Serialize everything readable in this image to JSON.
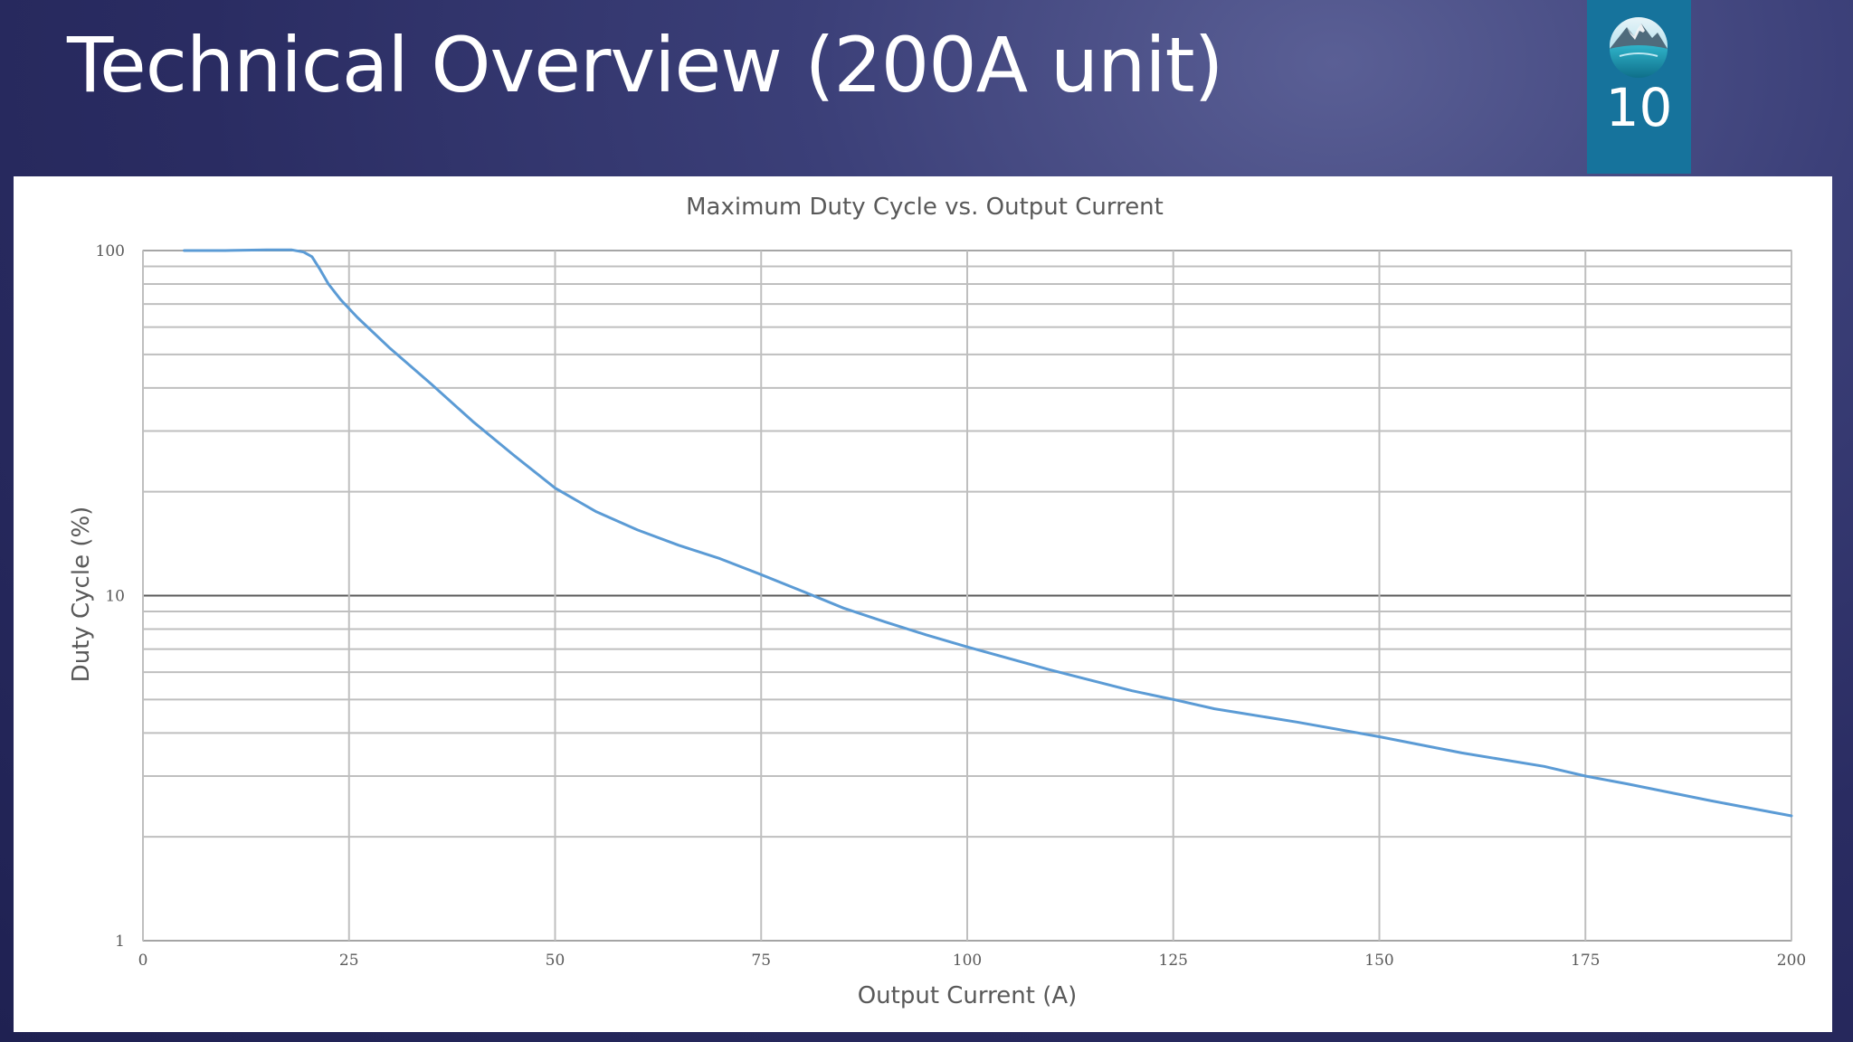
{
  "slide": {
    "title": "Technical Overview (200A unit)",
    "page_number": "10"
  },
  "colors": {
    "background": "#2a2c62",
    "badge": "#16739c",
    "line": "#5b9bd5",
    "major_grid": "#595959",
    "minor_grid": "#bfbfbf"
  },
  "chart_data": {
    "type": "line",
    "title": "Maximum Duty Cycle vs. Output Current",
    "xlabel": "Output Current (A)",
    "ylabel": "Duty Cycle (%)",
    "xlim": [
      0,
      200
    ],
    "ylim": [
      1,
      100
    ],
    "yscale": "log",
    "grid": true,
    "legend": "none",
    "x_ticks": [
      "0",
      "25",
      "50",
      "75",
      "100",
      "125",
      "150",
      "175",
      "200"
    ],
    "y_ticks": [
      "1",
      "10",
      "100"
    ],
    "series": [
      {
        "x": [
          5,
          10,
          15,
          18,
          19.5,
          20.5,
          21.5,
          22.5,
          24,
          26,
          30,
          35,
          40,
          45,
          50,
          55,
          60,
          65,
          70,
          75,
          80,
          85,
          90,
          95,
          100,
          110,
          120,
          125,
          130,
          140,
          150,
          160,
          170,
          175,
          180,
          190,
          200
        ],
        "y": [
          100,
          100,
          100.5,
          100.5,
          99,
          96,
          88,
          80,
          72,
          64,
          52,
          41,
          32,
          25.5,
          20.5,
          17.5,
          15.5,
          14,
          12.8,
          11.5,
          10.3,
          9.2,
          8.4,
          7.7,
          7.1,
          6.1,
          5.3,
          5.0,
          4.7,
          4.3,
          3.9,
          3.5,
          3.2,
          3.0,
          2.85,
          2.55,
          2.3
        ]
      }
    ]
  }
}
